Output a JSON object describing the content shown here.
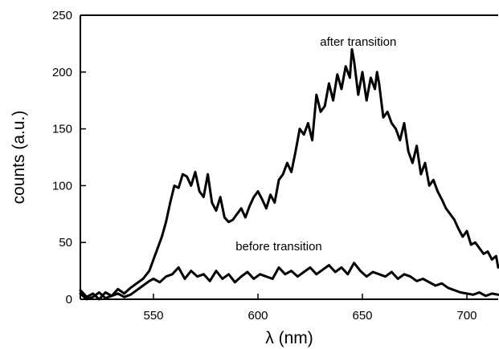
{
  "chart_data": {
    "type": "line",
    "title": "",
    "xlabel": "λ (nm)",
    "ylabel": "counts (a.u.)",
    "xlim": [
      515,
      715
    ],
    "ylim": [
      0,
      250
    ],
    "xticks": [
      550,
      600,
      650,
      700
    ],
    "yticks": [
      0,
      50,
      100,
      150,
      200,
      250
    ],
    "grid": false,
    "legend": "none",
    "annotations": [
      {
        "id": "after",
        "text": "after transition",
        "x": 648,
        "y": 223
      },
      {
        "id": "before",
        "text": "before transition",
        "x": 610,
        "y": 43
      }
    ],
    "series": [
      {
        "id": "after",
        "color": "#000000",
        "x": [
          515,
          518,
          521,
          524,
          527,
          530,
          533,
          536,
          539,
          542,
          545,
          548,
          550,
          552,
          554,
          556,
          558,
          560,
          562,
          564,
          566,
          568,
          570,
          572,
          574,
          576,
          578,
          580,
          582,
          584,
          586,
          588,
          590,
          592,
          594,
          596,
          598,
          600,
          602,
          604,
          606,
          608,
          610,
          612,
          614,
          616,
          618,
          620,
          622,
          624,
          626,
          628,
          630,
          632,
          634,
          636,
          638,
          640,
          642,
          644,
          645,
          646,
          648,
          650,
          652,
          654,
          656,
          657,
          658,
          660,
          662,
          664,
          666,
          668,
          670,
          672,
          674,
          676,
          678,
          680,
          682,
          684,
          686,
          688,
          690,
          692,
          694,
          696,
          698,
          700,
          702,
          704,
          706,
          708,
          710,
          712,
          714,
          715
        ],
        "y": [
          8,
          2,
          5,
          0,
          6,
          3,
          9,
          5,
          10,
          14,
          18,
          25,
          35,
          45,
          55,
          68,
          85,
          100,
          98,
          110,
          108,
          100,
          112,
          95,
          90,
          110,
          85,
          78,
          90,
          72,
          68,
          70,
          75,
          80,
          72,
          82,
          90,
          95,
          88,
          80,
          92,
          85,
          105,
          110,
          120,
          112,
          130,
          150,
          145,
          155,
          140,
          180,
          165,
          170,
          190,
          175,
          198,
          185,
          205,
          195,
          220,
          210,
          180,
          200,
          175,
          195,
          185,
          200,
          190,
          160,
          165,
          155,
          150,
          140,
          155,
          130,
          120,
          135,
          110,
          120,
          100,
          105,
          95,
          88,
          80,
          75,
          70,
          62,
          55,
          60,
          48,
          50,
          45,
          40,
          42,
          35,
          38,
          28
        ]
      },
      {
        "id": "before",
        "color": "#000000",
        "x": [
          515,
          518,
          521,
          524,
          527,
          530,
          533,
          536,
          539,
          542,
          545,
          548,
          550,
          553,
          556,
          559,
          562,
          565,
          568,
          571,
          574,
          577,
          580,
          583,
          586,
          589,
          592,
          595,
          598,
          601,
          604,
          607,
          610,
          613,
          616,
          619,
          622,
          625,
          628,
          631,
          634,
          637,
          640,
          643,
          646,
          649,
          652,
          655,
          658,
          661,
          664,
          667,
          670,
          673,
          676,
          679,
          682,
          685,
          688,
          691,
          694,
          697,
          700,
          703,
          706,
          709,
          712,
          715
        ],
        "y": [
          5,
          0,
          2,
          6,
          1,
          3,
          5,
          2,
          4,
          8,
          12,
          16,
          18,
          15,
          20,
          22,
          28,
          18,
          25,
          20,
          22,
          16,
          25,
          18,
          22,
          15,
          20,
          24,
          18,
          22,
          20,
          18,
          28,
          22,
          25,
          20,
          24,
          28,
          22,
          26,
          30,
          24,
          28,
          22,
          32,
          25,
          20,
          24,
          22,
          20,
          24,
          18,
          22,
          20,
          16,
          18,
          15,
          12,
          14,
          10,
          8,
          6,
          5,
          4,
          6,
          3,
          5,
          4
        ]
      }
    ]
  }
}
